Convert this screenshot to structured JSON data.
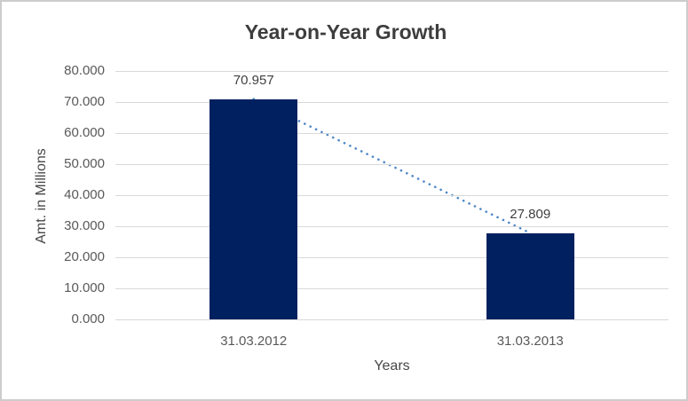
{
  "chart_data": {
    "type": "bar",
    "title": "Year-on-Year Growth",
    "xlabel": "Years",
    "ylabel": "Amt. in Millions",
    "categories": [
      "31.03.2012",
      "31.03.2013"
    ],
    "values": [
      70.957,
      27.809
    ],
    "data_labels": [
      "70.957",
      "27.809"
    ],
    "y_ticks": [
      "0.000",
      "10.000",
      "20.000",
      "30.000",
      "40.000",
      "50.000",
      "60.000",
      "70.000",
      "80.000"
    ],
    "ylim": [
      0,
      80
    ],
    "y_step": 10,
    "grid": "horizontal",
    "legend": "none",
    "trendline": {
      "type": "linear",
      "style": "dotted"
    },
    "colors": {
      "bar": "#002060",
      "trendline": "#4e87c8",
      "gridline": "#d9d9d9",
      "title_text": "#3d3d3d",
      "tick_text": "#595959",
      "axis_title_text": "#474747",
      "data_label_text": "#404040",
      "chart_border": "#cccccc",
      "background": "#ffffff"
    }
  }
}
